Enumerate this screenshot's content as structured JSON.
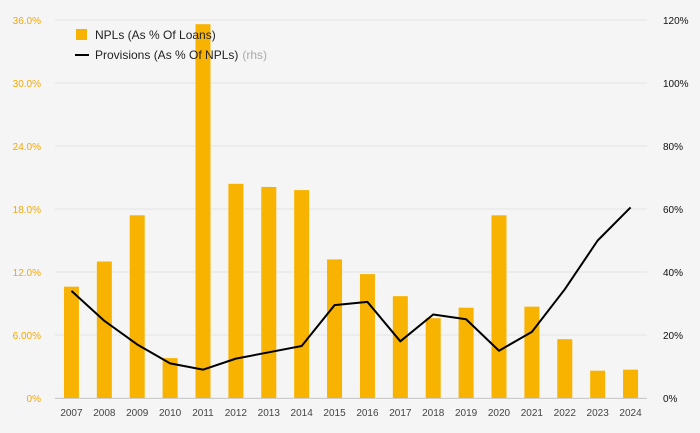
{
  "colors": {
    "bar": "#f8b300",
    "line": "#000000",
    "left_axis_text": "#f5a800",
    "right_axis_text": "#111111",
    "grid": "#e4e4e4",
    "background": "#f5f5f5"
  },
  "legend": {
    "bar_label": "NPLs (As % Of Loans)",
    "line_label": "Provisions (As % Of NPLs)",
    "line_suffix": "(rhs)"
  },
  "chart_data": {
    "type": "bar",
    "categories": [
      "2007",
      "2008",
      "2009",
      "2010",
      "2011",
      "2012",
      "2013",
      "2014",
      "2015",
      "2016",
      "2017",
      "2018",
      "2019",
      "2020",
      "2021",
      "2022",
      "2023",
      "2024"
    ],
    "series": [
      {
        "name": "NPLs (As % Of Loans)",
        "type": "bar",
        "axis": "left",
        "values": [
          10.6,
          13.0,
          17.4,
          3.8,
          35.6,
          20.4,
          20.1,
          19.8,
          13.2,
          11.8,
          9.7,
          7.6,
          8.6,
          17.4,
          8.7,
          5.6,
          2.6,
          2.7
        ]
      },
      {
        "name": "Provisions (As % Of NPLs)",
        "type": "line",
        "axis": "right",
        "values": [
          34,
          24.5,
          17,
          11,
          9,
          12.5,
          14.5,
          16.5,
          29.5,
          30.5,
          18,
          26.5,
          25,
          15,
          21,
          34.5,
          50,
          60.5
        ]
      }
    ],
    "ylim_left": [
      0,
      36
    ],
    "yticks_left": [
      "0%",
      "6.00%",
      "12.0%",
      "18.0%",
      "24.0%",
      "30.0%",
      "36.0%"
    ],
    "ylim_right": [
      0,
      120
    ],
    "yticks_right": [
      "0%",
      "20%",
      "40%",
      "60%",
      "80%",
      "100%",
      "120%"
    ],
    "grid": true,
    "legend_position": "top-left"
  }
}
